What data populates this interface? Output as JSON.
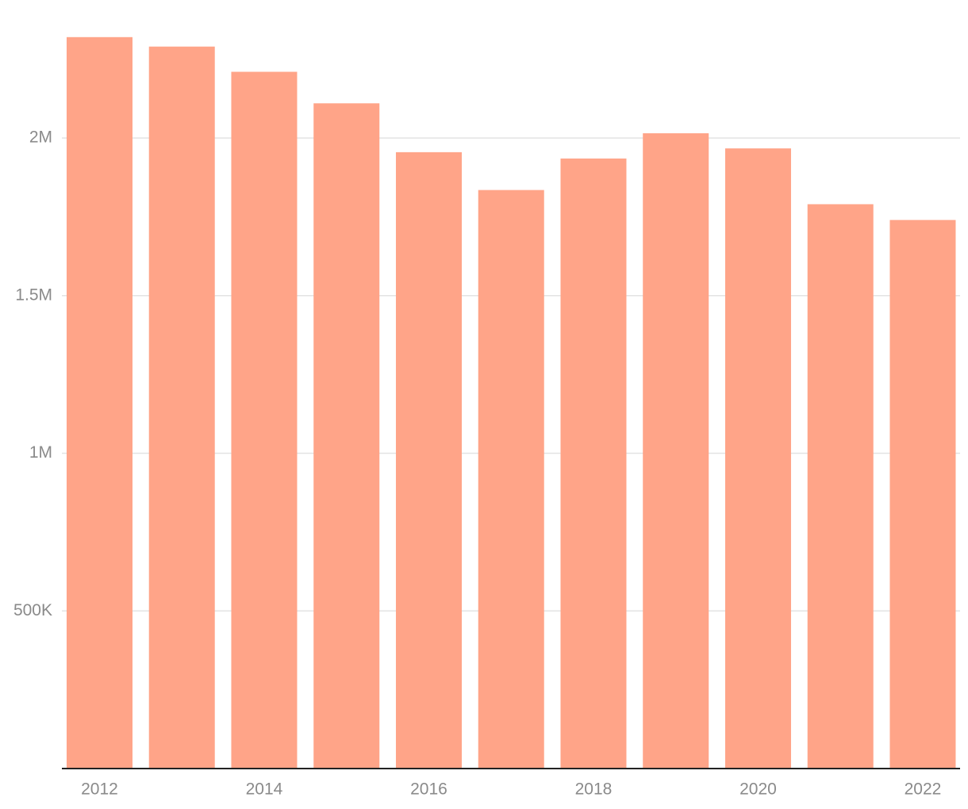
{
  "chart_data": {
    "type": "bar",
    "categories": [
      "2012",
      null,
      "2014",
      null,
      "2016",
      null,
      "2018",
      null,
      "2020",
      null,
      "2022"
    ],
    "values": [
      2320000,
      2290000,
      2210000,
      2110000,
      1955000,
      1835000,
      1935000,
      2015000,
      1967000,
      1790000,
      1740000
    ],
    "color": "#ffa488",
    "ylim": [
      0,
      2400000
    ],
    "yticks": [
      {
        "value": 500000,
        "label": "500K"
      },
      {
        "value": 1000000,
        "label": "1M"
      },
      {
        "value": 1500000,
        "label": "1.5M"
      },
      {
        "value": 2000000,
        "label": "2M"
      }
    ],
    "grid": true
  }
}
